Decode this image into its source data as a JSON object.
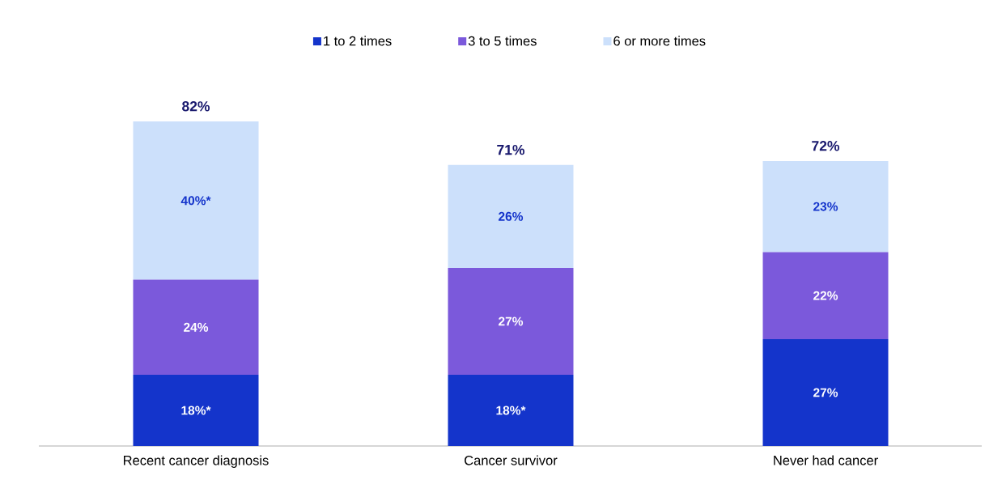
{
  "chart_data": {
    "type": "bar",
    "stacked": true,
    "categories": [
      "Recent cancer diagnosis",
      "Cancer survivor",
      "Never had cancer"
    ],
    "series": [
      {
        "name": "1 to 2 times",
        "color": "#1434cb",
        "values": [
          18,
          18,
          27
        ],
        "value_labels": [
          "18%*",
          "18%*",
          "27%"
        ]
      },
      {
        "name": "3 to 5 times",
        "color": "#7b59db",
        "values": [
          24,
          27,
          22
        ],
        "value_labels": [
          "24%",
          "27%",
          "22%"
        ]
      },
      {
        "name": "6 or more times",
        "color": "#cce0fb",
        "values": [
          40,
          26,
          23
        ],
        "value_labels": [
          "40%*",
          "26%",
          "23%"
        ]
      }
    ],
    "totals": [
      "82%",
      "71%",
      "72%"
    ],
    "legend": "top",
    "tick_labels": "x"
  }
}
